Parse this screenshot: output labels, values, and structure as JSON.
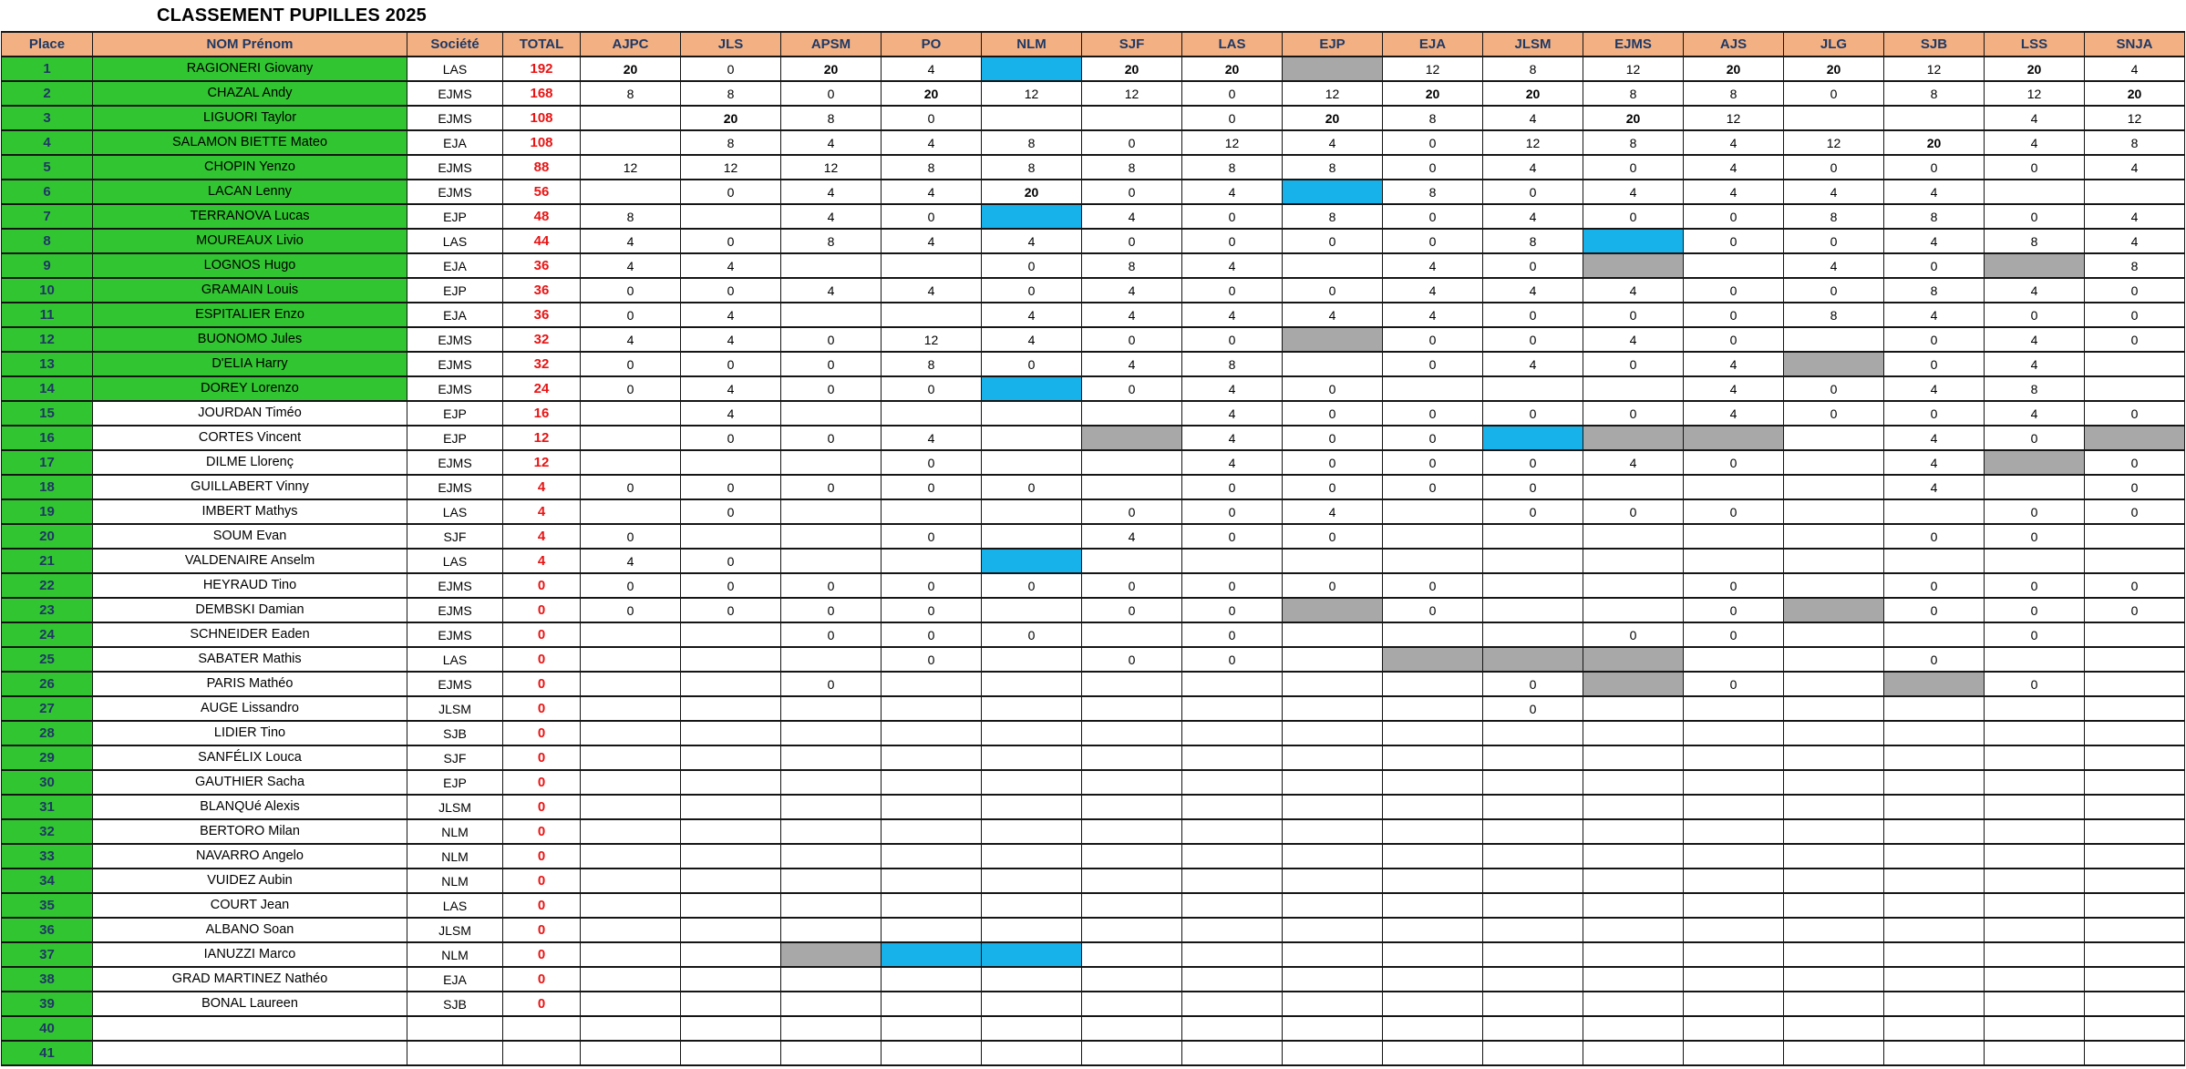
{
  "title": "CLASSEMENT PUPILLES 2025",
  "colors": {
    "header_bg": "#f3b183",
    "header_text": "#1f3864",
    "rank_green": "#31c631",
    "total_red": "#e81313",
    "cell_blue": "#18b2ea",
    "cell_gray": "#a8a8a8"
  },
  "columns": {
    "place": "Place",
    "name": "NOM Prénom",
    "club": "Société",
    "total": "TOTAL",
    "events": [
      "AJPC",
      "JLS",
      "APSM",
      "PO",
      "NLM",
      "SJF",
      "LAS",
      "EJP",
      "EJA",
      "JLSM",
      "EJMS",
      "AJS",
      "JLG",
      "SJB",
      "LSS",
      "SNJA"
    ]
  },
  "rows": [
    {
      "place": "1",
      "name": "RAGIONERI Giovany",
      "club": "LAS",
      "total": "192",
      "qualified": true,
      "scores": [
        "20",
        "0",
        "20",
        "4",
        "#B",
        "20",
        "20",
        "#G",
        "12",
        "8",
        "12",
        "20",
        "20",
        "12",
        "20",
        "4"
      ]
    },
    {
      "place": "2",
      "name": "CHAZAL Andy",
      "club": "EJMS",
      "total": "168",
      "qualified": true,
      "scores": [
        "8",
        "8",
        "0",
        "20",
        "12",
        "12",
        "0",
        "12",
        "20",
        "20",
        "8",
        "8",
        "0",
        "8",
        "12",
        "20"
      ]
    },
    {
      "place": "3",
      "name": "LIGUORI Taylor",
      "club": "EJMS",
      "total": "108",
      "qualified": true,
      "scores": [
        "",
        "20",
        "8",
        "0",
        "",
        "",
        "0",
        "20",
        "8",
        "4",
        "20",
        "12",
        "",
        "",
        "4",
        "12"
      ]
    },
    {
      "place": "4",
      "name": "SALAMON BIETTE Mateo",
      "club": "EJA",
      "total": "108",
      "qualified": true,
      "scores": [
        "",
        "8",
        "4",
        "4",
        "8",
        "0",
        "12",
        "4",
        "0",
        "12",
        "8",
        "4",
        "12",
        "20",
        "4",
        "8"
      ]
    },
    {
      "place": "5",
      "name": "CHOPIN Yenzo",
      "club": "EJMS",
      "total": "88",
      "qualified": true,
      "scores": [
        "12",
        "12",
        "12",
        "8",
        "8",
        "8",
        "8",
        "8",
        "0",
        "4",
        "0",
        "4",
        "0",
        "0",
        "0",
        "4"
      ]
    },
    {
      "place": "6",
      "name": "LACAN Lenny",
      "club": "EJMS",
      "total": "56",
      "qualified": true,
      "scores": [
        "",
        "0",
        "4",
        "4",
        "20",
        "0",
        "4",
        "#B",
        "8",
        "0",
        "4",
        "4",
        "4",
        "4",
        "",
        ""
      ]
    },
    {
      "place": "7",
      "name": "TERRANOVA Lucas",
      "club": "EJP",
      "total": "48",
      "qualified": true,
      "scores": [
        "8",
        "",
        "4",
        "0",
        "#B",
        "4",
        "0",
        "8",
        "0",
        "4",
        "0",
        "0",
        "8",
        "8",
        "0",
        "4"
      ]
    },
    {
      "place": "8",
      "name": "MOUREAUX Livio",
      "club": "LAS",
      "total": "44",
      "qualified": true,
      "scores": [
        "4",
        "0",
        "8",
        "4",
        "4",
        "0",
        "0",
        "0",
        "0",
        "8",
        "#B",
        "0",
        "0",
        "4",
        "8",
        "4"
      ]
    },
    {
      "place": "9",
      "name": "LOGNOS Hugo",
      "club": "EJA",
      "total": "36",
      "qualified": true,
      "scores": [
        "4",
        "4",
        "",
        "",
        "0",
        "8",
        "4",
        "",
        "4",
        "0",
        "#G",
        "",
        "4",
        "0",
        "#G",
        "8"
      ]
    },
    {
      "place": "10",
      "name": "GRAMAIN Louis",
      "club": "EJP",
      "total": "36",
      "qualified": true,
      "scores": [
        "0",
        "0",
        "4",
        "4",
        "0",
        "4",
        "0",
        "0",
        "4",
        "4",
        "4",
        "0",
        "0",
        "8",
        "4",
        "0"
      ]
    },
    {
      "place": "11",
      "name": "ESPITALIER Enzo",
      "club": "EJA",
      "total": "36",
      "qualified": true,
      "scores": [
        "0",
        "4",
        "",
        "",
        "4",
        "4",
        "4",
        "4",
        "4",
        "0",
        "0",
        "0",
        "8",
        "4",
        "0",
        "0"
      ]
    },
    {
      "place": "12",
      "name": "BUONOMO Jules",
      "club": "EJMS",
      "total": "32",
      "qualified": true,
      "scores": [
        "4",
        "4",
        "0",
        "12",
        "4",
        "0",
        "0",
        "#G",
        "0",
        "0",
        "4",
        "0",
        "",
        "0",
        "4",
        "0"
      ]
    },
    {
      "place": "13",
      "name": "D'ELIA Harry",
      "club": "EJMS",
      "total": "32",
      "qualified": true,
      "scores": [
        "0",
        "0",
        "0",
        "8",
        "0",
        "4",
        "8",
        "",
        "0",
        "4",
        "0",
        "4",
        "#G",
        "0",
        "4",
        ""
      ]
    },
    {
      "place": "14",
      "name": "DOREY Lorenzo",
      "club": "EJMS",
      "total": "24",
      "qualified": true,
      "scores": [
        "0",
        "4",
        "0",
        "0",
        "#B",
        "0",
        "4",
        "0",
        "",
        "",
        "",
        "4",
        "0",
        "4",
        "8",
        ""
      ]
    },
    {
      "place": "15",
      "name": "JOURDAN Timéo",
      "club": "EJP",
      "total": "16",
      "qualified": false,
      "scores": [
        "",
        "4",
        "",
        "",
        "",
        "",
        "4",
        "0",
        "0",
        "0",
        "0",
        "4",
        "0",
        "0",
        "4",
        "0"
      ]
    },
    {
      "place": "16",
      "name": "CORTES Vincent",
      "club": "EJP",
      "total": "12",
      "qualified": false,
      "scores": [
        "",
        "0",
        "0",
        "4",
        "",
        "#G",
        "4",
        "0",
        "0",
        "#B",
        "#G",
        "#G",
        "",
        "4",
        "0",
        "#G"
      ]
    },
    {
      "place": "17",
      "name": "DILME Llorenç",
      "club": "EJMS",
      "total": "12",
      "qualified": false,
      "scores": [
        "",
        "",
        "",
        "0",
        "",
        "",
        "4",
        "0",
        "0",
        "0",
        "4",
        "0",
        "",
        "4",
        "#G",
        "0"
      ]
    },
    {
      "place": "18",
      "name": "GUILLABERT Vinny",
      "club": "EJMS",
      "total": "4",
      "qualified": false,
      "scores": [
        "0",
        "0",
        "0",
        "0",
        "0",
        "",
        "0",
        "0",
        "0",
        "0",
        "",
        "",
        "",
        "4",
        "",
        "0"
      ]
    },
    {
      "place": "19",
      "name": "IMBERT Mathys",
      "club": "LAS",
      "total": "4",
      "qualified": false,
      "scores": [
        "",
        "0",
        "",
        "",
        "",
        "0",
        "0",
        "4",
        "",
        "0",
        "0",
        "0",
        "",
        "",
        "0",
        "0"
      ]
    },
    {
      "place": "20",
      "name": "SOUM Evan",
      "club": "SJF",
      "total": "4",
      "qualified": false,
      "scores": [
        "0",
        "",
        "",
        "0",
        "",
        "4",
        "0",
        "0",
        "",
        "",
        "",
        "",
        "",
        "0",
        "0",
        ""
      ]
    },
    {
      "place": "21",
      "name": "VALDENAIRE Anselm",
      "club": "LAS",
      "total": "4",
      "qualified": false,
      "scores": [
        "4",
        "0",
        "",
        "",
        "#B",
        "",
        "",
        "",
        "",
        "",
        "",
        "",
        "",
        "",
        "",
        ""
      ]
    },
    {
      "place": "22",
      "name": "HEYRAUD Tino",
      "club": "EJMS",
      "total": "0",
      "qualified": false,
      "scores": [
        "0",
        "0",
        "0",
        "0",
        "0",
        "0",
        "0",
        "0",
        "0",
        "",
        "",
        "0",
        "",
        "0",
        "0",
        "0"
      ]
    },
    {
      "place": "23",
      "name": "DEMBSKI Damian",
      "club": "EJMS",
      "total": "0",
      "qualified": false,
      "scores": [
        "0",
        "0",
        "0",
        "0",
        "",
        "0",
        "0",
        "#G",
        "0",
        "",
        "",
        "0",
        "#G",
        "0",
        "0",
        "0"
      ]
    },
    {
      "place": "24",
      "name": "SCHNEIDER Eaden",
      "club": "EJMS",
      "total": "0",
      "qualified": false,
      "scores": [
        "",
        "",
        "0",
        "0",
        "0",
        "",
        "0",
        "",
        "",
        "",
        "0",
        "0",
        "",
        "",
        "0",
        ""
      ]
    },
    {
      "place": "25",
      "name": "SABATER Mathis",
      "club": "LAS",
      "total": "0",
      "qualified": false,
      "scores": [
        "",
        "",
        "",
        "0",
        "",
        "0",
        "0",
        "",
        "#G",
        "#G",
        "#G",
        "",
        "",
        "0",
        "",
        ""
      ]
    },
    {
      "place": "26",
      "name": "PARIS Mathéo",
      "club": "EJMS",
      "total": "0",
      "qualified": false,
      "scores": [
        "",
        "",
        "0",
        "",
        "",
        "",
        "",
        "",
        "",
        "0",
        "#G",
        "0",
        "",
        "#G",
        "0",
        ""
      ]
    },
    {
      "place": "27",
      "name": "AUGE Lissandro",
      "club": "JLSM",
      "total": "0",
      "qualified": false,
      "scores": [
        "",
        "",
        "",
        "",
        "",
        "",
        "",
        "",
        "",
        "0",
        "",
        "",
        "",
        "",
        "",
        ""
      ]
    },
    {
      "place": "28",
      "name": "LIDIER Tino",
      "club": "SJB",
      "total": "0",
      "qualified": false,
      "scores": [
        "",
        "",
        "",
        "",
        "",
        "",
        "",
        "",
        "",
        "",
        "",
        "",
        "",
        "",
        "",
        ""
      ]
    },
    {
      "place": "29",
      "name": "SANFÉLIX Louca",
      "club": "SJF",
      "total": "0",
      "qualified": false,
      "scores": [
        "",
        "",
        "",
        "",
        "",
        "",
        "",
        "",
        "",
        "",
        "",
        "",
        "",
        "",
        "",
        ""
      ]
    },
    {
      "place": "30",
      "name": "GAUTHIER Sacha",
      "club": "EJP",
      "total": "0",
      "qualified": false,
      "scores": [
        "",
        "",
        "",
        "",
        "",
        "",
        "",
        "",
        "",
        "",
        "",
        "",
        "",
        "",
        "",
        ""
      ]
    },
    {
      "place": "31",
      "name": "BLANQUé Alexis",
      "club": "JLSM",
      "total": "0",
      "qualified": false,
      "scores": [
        "",
        "",
        "",
        "",
        "",
        "",
        "",
        "",
        "",
        "",
        "",
        "",
        "",
        "",
        "",
        ""
      ]
    },
    {
      "place": "32",
      "name": "BERTORO Milan",
      "club": "NLM",
      "total": "0",
      "qualified": false,
      "scores": [
        "",
        "",
        "",
        "",
        "",
        "",
        "",
        "",
        "",
        "",
        "",
        "",
        "",
        "",
        "",
        ""
      ]
    },
    {
      "place": "33",
      "name": "NAVARRO Angelo",
      "club": "NLM",
      "total": "0",
      "qualified": false,
      "scores": [
        "",
        "",
        "",
        "",
        "",
        "",
        "",
        "",
        "",
        "",
        "",
        "",
        "",
        "",
        "",
        ""
      ]
    },
    {
      "place": "34",
      "name": "VUIDEZ Aubin",
      "club": "NLM",
      "total": "0",
      "qualified": false,
      "scores": [
        "",
        "",
        "",
        "",
        "",
        "",
        "",
        "",
        "",
        "",
        "",
        "",
        "",
        "",
        "",
        ""
      ]
    },
    {
      "place": "35",
      "name": "COURT Jean",
      "club": "LAS",
      "total": "0",
      "qualified": false,
      "scores": [
        "",
        "",
        "",
        "",
        "",
        "",
        "",
        "",
        "",
        "",
        "",
        "",
        "",
        "",
        "",
        ""
      ]
    },
    {
      "place": "36",
      "name": "ALBANO Soan",
      "club": "JLSM",
      "total": "0",
      "qualified": false,
      "scores": [
        "",
        "",
        "",
        "",
        "",
        "",
        "",
        "",
        "",
        "",
        "",
        "",
        "",
        "",
        "",
        ""
      ]
    },
    {
      "place": "37",
      "name": "IANUZZI Marco",
      "club": "NLM",
      "total": "0",
      "qualified": false,
      "scores": [
        "",
        "",
        "#G",
        "#B",
        "#B",
        "",
        "",
        "",
        "",
        "",
        "",
        "",
        "",
        "",
        "",
        ""
      ]
    },
    {
      "place": "38",
      "name": "GRAD MARTINEZ Nathéo",
      "club": "EJA",
      "total": "0",
      "qualified": false,
      "scores": [
        "",
        "",
        "",
        "",
        "",
        "",
        "",
        "",
        "",
        "",
        "",
        "",
        "",
        "",
        "",
        ""
      ]
    },
    {
      "place": "39",
      "name": "BONAL Laureen",
      "club": "SJB",
      "total": "0",
      "qualified": false,
      "scores": [
        "",
        "",
        "",
        "",
        "",
        "",
        "",
        "",
        "",
        "",
        "",
        "",
        "",
        "",
        "",
        ""
      ]
    },
    {
      "place": "40",
      "name": "",
      "club": "",
      "total": "",
      "qualified": false,
      "scores": [
        "",
        "",
        "",
        "",
        "",
        "",
        "",
        "",
        "",
        "",
        "",
        "",
        "",
        "",
        "",
        ""
      ]
    },
    {
      "place": "41",
      "name": "",
      "club": "",
      "total": "",
      "qualified": false,
      "scores": [
        "",
        "",
        "",
        "",
        "",
        "",
        "",
        "",
        "",
        "",
        "",
        "",
        "",
        "",
        "",
        ""
      ]
    }
  ]
}
